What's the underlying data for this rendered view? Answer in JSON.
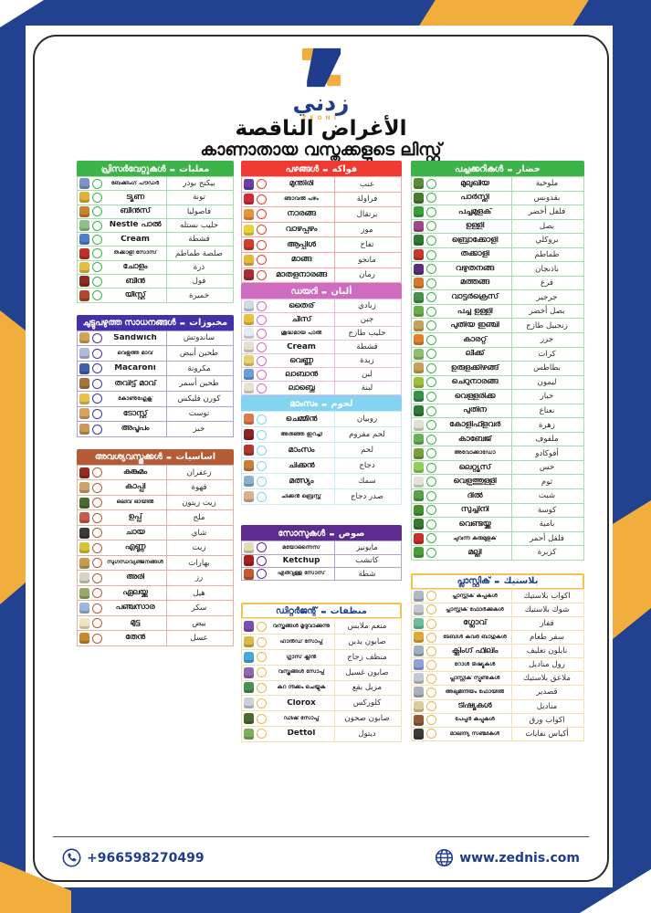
{
  "page": {
    "brand_ar": "زدني",
    "brand_en": "ZEDNI",
    "title_ar": "الأغراض الناقصة",
    "title_ml": "കാണാതായ വസ്തുക്കളുടെ ലിസ്റ്റ്",
    "footer": {
      "phone": "+966598270499",
      "website": "www.zednis.com"
    }
  },
  "colors": {
    "frame_blue": "#22418f",
    "frame_yellow": "#f2ae3c",
    "navy_text": "#1f3d8c"
  },
  "columns": [
    {
      "sections": [
        {
          "name": "canned",
          "header": {
            "ml": "പ്രിസർവേറ്റുകൾ",
            "ar": "معلبات"
          },
          "accent": "#3cb44a",
          "header_bg": "#3cb44a",
          "header_fg": "#ffffff",
          "items": [
            {
              "ml": "ബേക്കിംഗ് പൗഡർ",
              "ar": "بيكنج بودر",
              "icon": "baking-powder-jar",
              "c": "#7d93c9",
              "small": true
            },
            {
              "ml": "ട്യൂണ",
              "ar": "تونة",
              "icon": "tuna-can",
              "c": "#e0b13c"
            },
            {
              "ml": "ബീൻസ്",
              "ar": "فاصوليا",
              "icon": "beans-jar",
              "c": "#c9822e"
            },
            {
              "ml": "Nestlé പാൽ",
              "ar": "حليب نستله",
              "icon": "milk-can",
              "c": "#8cc18c"
            },
            {
              "ml": "Cream",
              "ar": "قشطة",
              "icon": "cream-can",
              "c": "#4f7fc9"
            },
            {
              "ml": "തക്കാളി സോസ്",
              "ar": "صلصة طماطم",
              "icon": "tomato-sauce-bottle",
              "c": "#c03028",
              "small": true
            },
            {
              "ml": "ചോളം",
              "ar": "ذرة",
              "icon": "corn-can",
              "c": "#e3bd3e"
            },
            {
              "ml": "ബീൻ",
              "ar": "فول",
              "icon": "fava-beans-can",
              "c": "#8f2a22"
            },
            {
              "ml": "യീസ്റ്റ്",
              "ar": "خميرة",
              "icon": "yeast-jar",
              "c": "#b2452c"
            }
          ]
        },
        {
          "name": "bakery",
          "header": {
            "ml": "ചുട്ടുപഴുത്ത സാധനങ്ങൾ",
            "ar": "مخبوزات"
          },
          "accent": "#4630a8",
          "header_bg": "#4630a8",
          "header_fg": "#ffffff",
          "items": [
            {
              "ml": "Sandwich",
              "ar": "ساندوتش",
              "icon": "baguette",
              "c": "#d7a255"
            },
            {
              "ml": "വെളുത്ത മാവ്",
              "ar": "طحين أبيض",
              "icon": "white-flour-bag",
              "c": "#aebbdd",
              "small": true
            },
            {
              "ml": "Macaroni",
              "ar": "مكرونة",
              "icon": "macaroni-box",
              "c": "#3e5fae"
            },
            {
              "ml": "തവിട്ട് മാവ്",
              "ar": "طحين أسمر",
              "icon": "brown-flour-bag",
              "c": "#a9743c"
            },
            {
              "ml": "കോൺഫ്ലേക്സ്",
              "ar": "كورن فليكس",
              "icon": "cornflakes-box",
              "c": "#e8c24a",
              "small": true
            },
            {
              "ml": "ടോസ്റ്റ്",
              "ar": "توست",
              "icon": "toast",
              "c": "#d8a35a"
            },
            {
              "ml": "അപൂപം",
              "ar": "خبز",
              "icon": "bread",
              "c": "#c89a55"
            }
          ]
        },
        {
          "name": "essentials",
          "header": {
            "ml": "അവശ്യവസ്തുക്കൾ",
            "ar": "اساسيات"
          },
          "accent": "#b55b38",
          "header_bg": "#b55b38",
          "header_fg": "#ffffff",
          "items": [
            {
              "ml": "കുങ്കുമം",
              "ar": "زعفران",
              "icon": "saffron",
              "c": "#8f2d20"
            },
            {
              "ml": "കാപ്പി",
              "ar": "قهوة",
              "icon": "coffee-bag",
              "c": "#caa36a"
            },
            {
              "ml": "ഒലിവ് ഓയിൽ",
              "ar": "زيت زيتون",
              "icon": "olive-oil-bottle",
              "c": "#4a6b2e",
              "small": true
            },
            {
              "ml": "ഉപ്പ്",
              "ar": "ملح",
              "icon": "salt-pack",
              "c": "#c65a4a"
            },
            {
              "ml": "ചായ",
              "ar": "شاي",
              "icon": "tea-box",
              "c": "#3a3a3a"
            },
            {
              "ml": "എണ്ണ",
              "ar": "زيت",
              "icon": "oil-bottle",
              "c": "#d9c23a"
            },
            {
              "ml": "സുഗന്ധവ്യഞ്ജനങ്ങൾ",
              "ar": "بهارات",
              "icon": "spices-jars",
              "c": "#c79b4f",
              "small": true
            },
            {
              "ml": "അരി",
              "ar": "رز",
              "icon": "rice-bag",
              "c": "#d8d2c2"
            },
            {
              "ml": "ഏലയ്ക്ക",
              "ar": "هيل",
              "icon": "cardamom-pack",
              "c": "#9aa86a"
            },
            {
              "ml": "പഞ്ചസാര",
              "ar": "سكر",
              "icon": "sugar-pack",
              "c": "#9db6d8"
            },
            {
              "ml": "മുട്ട",
              "ar": "بيض",
              "icon": "egg",
              "c": "#efe3c0"
            },
            {
              "ml": "തേൻ",
              "ar": "عسل",
              "icon": "honey-jar",
              "c": "#c8862e"
            }
          ]
        }
      ]
    },
    {
      "sections": [
        {
          "name": "fruits",
          "header": {
            "ml": "പഴങ്ങൾ",
            "ar": "فواكه"
          },
          "accent": "#ee3a30",
          "header_bg": "#ee3a30",
          "header_fg": "#ffffff",
          "items": [
            {
              "ml": "മുന്തിരി",
              "ar": "عنب",
              "icon": "grapes",
              "c": "#6b3fa0"
            },
            {
              "ml": "ഞാവൽ പഴം",
              "ar": "فراولة",
              "icon": "strawberry",
              "c": "#c92c3c",
              "small": true
            },
            {
              "ml": "നാരങ്ങ",
              "ar": "برتقال",
              "icon": "orange",
              "c": "#e8923a"
            },
            {
              "ml": "വാഴപ്പഴം",
              "ar": "موز",
              "icon": "banana",
              "c": "#e8d33c"
            },
            {
              "ml": "ആപ്പിൾ",
              "ar": "تفاح",
              "icon": "apple",
              "c": "#d23b2e"
            },
            {
              "ml": "മാങ്ങ",
              "ar": "مانجو",
              "icon": "mango",
              "c": "#e8b83c"
            },
            {
              "ml": "മാതളനാരങ്ങ",
              "ar": "رمان",
              "icon": "pomegranate",
              "c": "#b02a35"
            }
          ]
        },
        {
          "name": "dairy",
          "header": {
            "ml": "ഡയറി",
            "ar": "ألبان"
          },
          "accent": "#d06cc0",
          "header_bg": "#d06cc0",
          "header_fg": "#ffffff",
          "items": [
            {
              "ml": "തൈര്",
              "ar": "زبادي",
              "icon": "yogurt-tub",
              "c": "#cfd8e8"
            },
            {
              "ml": "ചീസ്",
              "ar": "جبن",
              "icon": "cheese",
              "c": "#e8c23c"
            },
            {
              "ml": "ശുദ്ധമായ പാൽ",
              "ar": "حليب طازج",
              "icon": "milk-bottle",
              "c": "#e3ecf4",
              "small": true
            },
            {
              "ml": "Cream",
              "ar": "قشطة",
              "icon": "cream-tub",
              "c": "#e8e0cf"
            },
            {
              "ml": "വെണ്ണ",
              "ar": "زبدة",
              "icon": "butter",
              "c": "#e8cf6a"
            },
            {
              "ml": "ലാബാൻ",
              "ar": "لبن",
              "icon": "laban-tub",
              "c": "#6a9fd8"
            },
            {
              "ml": "ലാബ്നെ",
              "ar": "لبنة",
              "icon": "labneh-bowl",
              "c": "#e8e3d0"
            }
          ]
        },
        {
          "name": "meat",
          "header": {
            "ml": "മാംസം",
            "ar": "لحوم"
          },
          "accent": "#82d4f0",
          "header_bg": "#82d4f0",
          "header_fg": "#ffffff",
          "items": [
            {
              "ml": "ചെമ്മീൻ",
              "ar": "روبيان",
              "icon": "shrimp",
              "c": "#e07a4a"
            },
            {
              "ml": "അരിഞ്ഞ ഇറച്ചി",
              "ar": "لحم مفروم",
              "icon": "minced-meat",
              "c": "#8c2420",
              "small": true
            },
            {
              "ml": "മാംസം",
              "ar": "لحم",
              "icon": "meat",
              "c": "#b03a30"
            },
            {
              "ml": "ചിക്കൻ",
              "ar": "دجاج",
              "icon": "chicken",
              "c": "#c9803a"
            },
            {
              "ml": "മത്സ്യം",
              "ar": "سمك",
              "icon": "fish",
              "c": "#8fb0c9"
            },
            {
              "ml": "ചിക്കൻ ബ്രെസ്റ്റ്",
              "ar": "صدر دجاج",
              "icon": "chicken-breast",
              "c": "#d8b090",
              "small": true
            }
          ]
        },
        {
          "name": "sauces",
          "header": {
            "ml": "സോസുകൾ",
            "ar": "صوص"
          },
          "accent": "#5c2b8f",
          "header_bg": "#5c2b8f",
          "header_fg": "#ffffff",
          "items": [
            {
              "ml": "മയോന്നൈസ്",
              "ar": "مايونيز",
              "icon": "mayonnaise-jar",
              "c": "#e3dcb4",
              "small": true
            },
            {
              "ml": "Ketchup",
              "ar": "كاتشب",
              "icon": "ketchup-bottle",
              "c": "#a8201a"
            },
            {
              "ml": "എരിവുള്ള സോസ്",
              "ar": "شطة",
              "icon": "hot-sauce-bottle",
              "c": "#c45a2e",
              "small": true
            }
          ]
        },
        {
          "name": "detergent",
          "header": {
            "ml": "ഡിറ്റർജന്റ്",
            "ar": "منظفات"
          },
          "accent": "#e8b84b",
          "header_bg": "#ffffff",
          "header_fg": "#1f3d8c",
          "header_border": "#f2c14e",
          "items": [
            {
              "ml": "വസ്ത്രങ്ങൾ മൃദുവാക്കുന്നു",
              "ar": "منعم ملابس",
              "icon": "fabric-softener-bottle",
              "c": "#7a4fb0",
              "small": true
            },
            {
              "ml": "ഹാൻഡ് സോപ്പ്",
              "ar": "صابون يدين",
              "icon": "hand-soap",
              "c": "#d8b94a",
              "small": true
            },
            {
              "ml": "ഗ്ലാസ് ക്ലീൻ",
              "ar": "منظف زجاج",
              "icon": "glass-cleaner-spray",
              "c": "#4aa8d8",
              "small": true
            },
            {
              "ml": "വസ്ത്രങ്ങൾ സോപ്പ്",
              "ar": "صابون غسيل",
              "icon": "laundry-detergent",
              "c": "#8f6ab0",
              "small": true
            },
            {
              "ml": "കറ നീക്കം ചെയ്യുക",
              "ar": "مزيل بقع",
              "icon": "stain-remover",
              "c": "#4a8f5a",
              "small": true
            },
            {
              "ml": "Clorox",
              "ar": "كلوركس",
              "icon": "clorox-bottle",
              "c": "#c9d2d8"
            },
            {
              "ml": "ഡിഷ് സോപ്പ്",
              "ar": "صابون صحون",
              "icon": "dish-soap",
              "c": "#4a6b30",
              "small": true
            },
            {
              "ml": "Dettol",
              "ar": "ديتول",
              "icon": "dettol-bottle",
              "c": "#7ab05a"
            }
          ]
        }
      ]
    },
    {
      "sections": [
        {
          "name": "vegetables",
          "header": {
            "ml": "പച്ചക്കറികൾ",
            "ar": "خضار"
          },
          "accent": "#3cb44a",
          "header_bg": "#3cb44a",
          "header_fg": "#ffffff",
          "items": [
            {
              "ml": "മുലുഖിയ",
              "ar": "ملوخية",
              "icon": "molokhia",
              "c": "#5a8f3a"
            },
            {
              "ml": "പാർസ്ലി",
              "ar": "بقدونس",
              "icon": "parsley",
              "c": "#4a7a30"
            },
            {
              "ml": "പച്ചമുളക്",
              "ar": "فلفل أخضر",
              "icon": "green-pepper",
              "c": "#3a9f3a"
            },
            {
              "ml": "ഉള്ളി",
              "ar": "بصل",
              "icon": "onion",
              "c": "#9f4a8a"
            },
            {
              "ml": "ബ്രൊക്കോളി",
              "ar": "بروكلي",
              "icon": "broccoli",
              "c": "#2e7a35"
            },
            {
              "ml": "തക്കാളി",
              "ar": "طماطم",
              "icon": "tomato",
              "c": "#c9382e"
            },
            {
              "ml": "വഴുതനങ്ങ",
              "ar": "باذنجان",
              "icon": "eggplant",
              "c": "#5a2e7a"
            },
            {
              "ml": "മത്തങ്ങ",
              "ar": "قرع",
              "icon": "pumpkin",
              "c": "#d87a2e"
            },
            {
              "ml": "വാട്ടർക്രെസ്",
              "ar": "جرجير",
              "icon": "arugula",
              "c": "#4a8f4a"
            },
            {
              "ml": "പച്ച ഉള്ളി",
              "ar": "بصل أخضر",
              "icon": "green-onion",
              "c": "#6aaf4a"
            },
            {
              "ml": "പുതിയ ഇഞ്ചി",
              "ar": "زنجبيل طازج",
              "icon": "ginger",
              "c": "#c9a05a"
            },
            {
              "ml": "കാരറ്റ്",
              "ar": "جزر",
              "icon": "carrot",
              "c": "#e0812e"
            },
            {
              "ml": "ലീക്ക്",
              "ar": "كرات",
              "icon": "leek",
              "c": "#8fbf6a"
            },
            {
              "ml": "ഉരുളക്കിഴങ്ങ്",
              "ar": "بطاطس",
              "icon": "potato",
              "c": "#c9a05a"
            },
            {
              "ml": "ചെറുനാരങ്ങ",
              "ar": "ليمون",
              "icon": "lime",
              "c": "#9fbf3a"
            },
            {
              "ml": "വെള്ളരിക്ക",
              "ar": "خيار",
              "icon": "cucumber",
              "c": "#3a8f4a"
            },
            {
              "ml": "പുതിന",
              "ar": "نعناع",
              "icon": "mint",
              "c": "#2e7a3a"
            },
            {
              "ml": "കോളിഫ്ളവർ",
              "ar": "زهرة",
              "icon": "cauliflower",
              "c": "#e0e0d0"
            },
            {
              "ml": "കാബേജ്",
              "ar": "ملفوف",
              "icon": "cabbage",
              "c": "#6aaf5a"
            },
            {
              "ml": "അവോക്കാഡോ",
              "ar": "أفوكادو",
              "icon": "avocado",
              "c": "#7a9f3a",
              "small": true
            },
            {
              "ml": "ലെറ്റ്യൂസ്",
              "ar": "خس",
              "icon": "lettuce",
              "c": "#8fcf5a"
            },
            {
              "ml": "വെളുത്തുള്ളി",
              "ar": "ثوم",
              "icon": "garlic",
              "c": "#e3e3da"
            },
            {
              "ml": "ദിൽ",
              "ar": "شبت",
              "icon": "dill",
              "c": "#5a9f4a"
            },
            {
              "ml": "സുച്ചിനി",
              "ar": "كوسة",
              "icon": "zucchini",
              "c": "#4a8f35"
            },
            {
              "ml": "വെണ്ടയ്ക്ക",
              "ar": "بامية",
              "icon": "okra",
              "c": "#3a7a30"
            },
            {
              "ml": "ചുവന്ന കുരുമുളക്",
              "ar": "فلفل أحمر",
              "icon": "red-bell-pepper",
              "c": "#c92e2e",
              "small": true
            },
            {
              "ml": "മല്ലി",
              "ar": "كزبرة",
              "icon": "coriander",
              "c": "#4a9f3a"
            }
          ]
        },
        {
          "name": "plastic",
          "header": {
            "ml": "പ്ലാസ്റ്റിക്",
            "ar": "بلاستيك"
          },
          "accent": "#e8b84b",
          "header_bg": "#ffffff",
          "header_fg": "#1f3d8c",
          "header_border": "#f2c14e",
          "items": [
            {
              "ml": "പ്ലാസ്റ്റിക് കപ്പുകൾ",
              "ar": "اكواب بلاستيك",
              "icon": "plastic-cups",
              "c": "#aeb8c9",
              "small": true
            },
            {
              "ml": "പ്ലാസ്റ്റിക് ഫോർക്കുകൾ",
              "ar": "شوك بلاستيك",
              "icon": "plastic-forks",
              "c": "#c2c9d4",
              "small": true
            },
            {
              "ml": "ഗ്ലോവ്",
              "ar": "قفاز",
              "icon": "gloves",
              "c": "#6abf9f"
            },
            {
              "ml": "ടേബിൾ കവർ ബാഗുകൾ",
              "ar": "سفر طعام",
              "icon": "food-container",
              "c": "#e0a83c",
              "small": true
            },
            {
              "ml": "ക്ലിംഗ് ഫിലിം",
              "ar": "نايلون تغليف",
              "icon": "cling-film",
              "c": "#9fb0bf"
            },
            {
              "ml": "റോൾ ടിഷ്യൂകൾ",
              "ar": "رول مناديل",
              "icon": "tissue-roll",
              "c": "#8f9fd8",
              "small": true
            },
            {
              "ml": "പ്ലാസ്റ്റിക് സ്പൂണുകൾ",
              "ar": "ملاعق بلاستيك",
              "icon": "plastic-spoons",
              "c": "#c2c9d4",
              "small": true
            },
            {
              "ml": "അലുമിനിയം ഫോയിൽ",
              "ar": "قصدير",
              "icon": "aluminum-foil",
              "c": "#aab2bf",
              "small": true
            },
            {
              "ml": "ടിഷ്യൂകൾ",
              "ar": "مناديل",
              "icon": "tissues-box",
              "c": "#d8cfa0"
            },
            {
              "ml": "പേപ്പർ കപ്പുകൾ",
              "ar": "اكواب ورق",
              "icon": "paper-cups",
              "c": "#8f5a3a",
              "small": true
            },
            {
              "ml": "മാലിന്യ സഞ്ചികൾ",
              "ar": "أكياس نفايات",
              "icon": "trash-bags",
              "c": "#3a3a3a",
              "small": true
            }
          ]
        }
      ]
    }
  ]
}
